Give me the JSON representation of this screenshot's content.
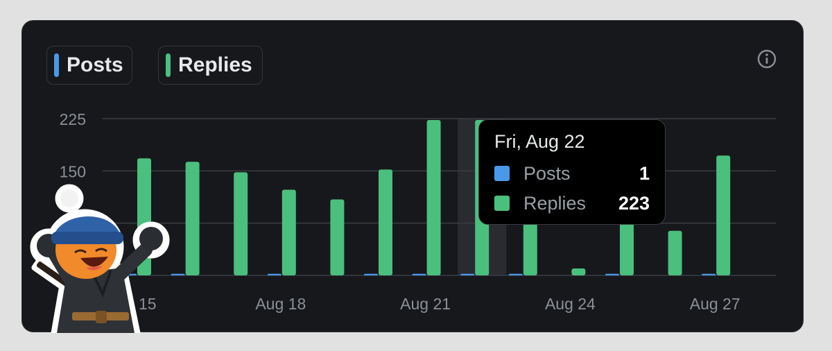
{
  "legend": {
    "posts_label": "Posts",
    "replies_label": "Replies"
  },
  "colors": {
    "posts": "#4a99e9",
    "replies": "#4bbf7d",
    "background": "#17181c",
    "grid": "#3a3d42",
    "axis_text": "#8b9096"
  },
  "icons": {
    "info": "info-icon"
  },
  "tooltip": {
    "date": "Fri, Aug 22",
    "rows": [
      {
        "name": "Posts",
        "value": "1"
      },
      {
        "name": "Replies",
        "value": "223"
      }
    ]
  },
  "chart_data": {
    "type": "bar",
    "categories": [
      "Aug 15",
      "Aug 16",
      "Aug 17",
      "Aug 18",
      "Aug 19",
      "Aug 20",
      "Aug 21",
      "Aug 22",
      "Aug 23",
      "Aug 24",
      "Aug 25",
      "Aug 26",
      "Aug 27"
    ],
    "x_tick_labels": [
      "15",
      "Aug 18",
      "Aug 21",
      "Aug 24",
      "Aug 27"
    ],
    "y_ticks": [
      150,
      225
    ],
    "ylim": [
      0,
      225
    ],
    "grid": true,
    "legend": "top-left",
    "highlighted_category": "Aug 22",
    "series": [
      {
        "name": "Posts",
        "values": [
          1,
          1,
          0,
          2,
          0,
          1,
          1,
          1,
          1,
          0,
          1,
          0,
          1
        ]
      },
      {
        "name": "Replies",
        "values": [
          168,
          163,
          148,
          123,
          109,
          152,
          223,
          223,
          124,
          10,
          125,
          64,
          172
        ]
      }
    ]
  }
}
